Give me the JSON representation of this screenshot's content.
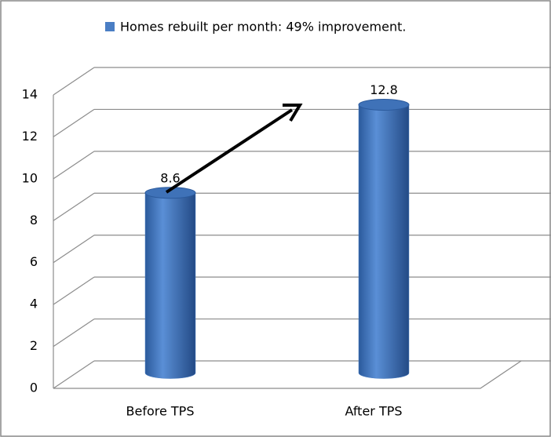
{
  "chart_data": {
    "type": "bar",
    "categories": [
      "Before TPS",
      "After TPS"
    ],
    "series": [
      {
        "name": "Homes rebuilt per month: 49% improvement.",
        "color": "#4a7ec4",
        "values": [
          8.6,
          12.8
        ]
      }
    ],
    "ylim": [
      0,
      14
    ],
    "yticks": [
      0,
      2,
      4,
      6,
      8,
      10,
      12,
      14
    ],
    "grid": true,
    "legend": "top"
  }
}
